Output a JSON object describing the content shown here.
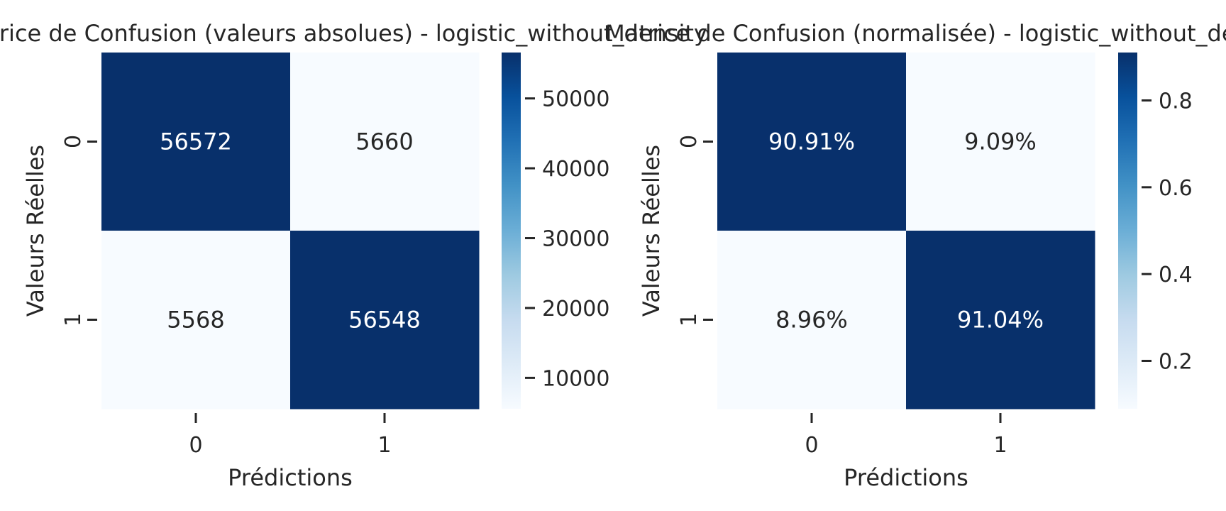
{
  "chart_data": [
    {
      "type": "heatmap",
      "title": "Matrice de Confusion (valeurs absolues) - logistic_without_density",
      "xlabel": "Prédictions",
      "ylabel": "Valeurs Réelles",
      "x_categories": [
        "0",
        "1"
      ],
      "y_categories": [
        "0",
        "1"
      ],
      "values": [
        [
          56572,
          5660
        ],
        [
          5568,
          56548
        ]
      ],
      "cell_labels": [
        [
          "56572",
          "5660"
        ],
        [
          "5568",
          "56548"
        ]
      ],
      "colormap": "Blues",
      "colorbar_range": [
        5568,
        56572
      ],
      "colorbar_ticks": [
        10000,
        20000,
        30000,
        40000,
        50000
      ],
      "colorbar_tick_labels": [
        "10000",
        "20000",
        "30000",
        "40000",
        "50000"
      ]
    },
    {
      "type": "heatmap",
      "title": "Matrice de Confusion (normalisée) - logistic_without_density",
      "xlabel": "Prédictions",
      "ylabel": "Valeurs Réelles",
      "x_categories": [
        "0",
        "1"
      ],
      "y_categories": [
        "0",
        "1"
      ],
      "values": [
        [
          0.9091,
          0.0909
        ],
        [
          0.0896,
          0.9104
        ]
      ],
      "cell_labels": [
        [
          "90.91%",
          "9.09%"
        ],
        [
          "8.96%",
          "91.04%"
        ]
      ],
      "colormap": "Blues",
      "colorbar_range": [
        0.0896,
        0.9104
      ],
      "colorbar_ticks": [
        0.2,
        0.4,
        0.6,
        0.8
      ],
      "colorbar_tick_labels": [
        "0.2",
        "0.4",
        "0.6",
        "0.8"
      ]
    }
  ]
}
